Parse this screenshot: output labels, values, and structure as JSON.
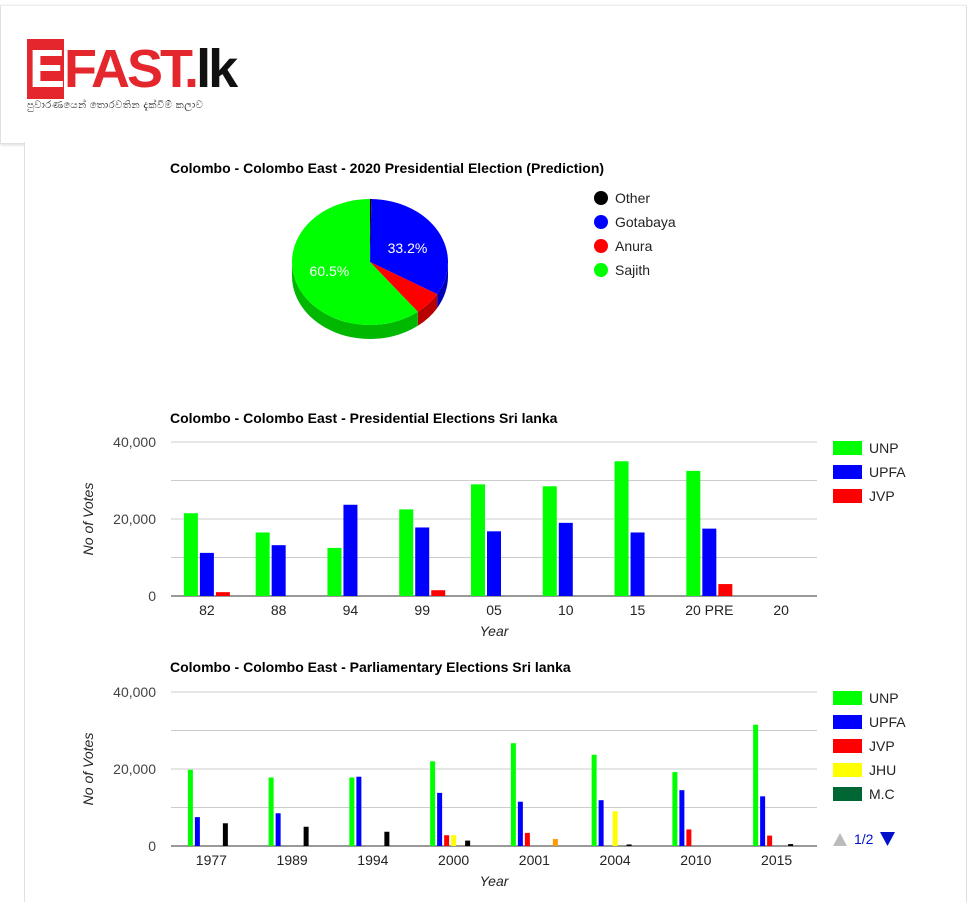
{
  "header": {
    "logo_e": "E",
    "logo_fast": "FAST.",
    "logo_lk": "lk",
    "tagline": "පුවාරණයෙන් තොරවතින දැක්වීම් කලාව"
  },
  "charts": {
    "pie": {
      "title": "Colombo - Colombo East - 2020 Presidential Election (Prediction)"
    },
    "pres": {
      "title": "Colombo - Colombo East - Presidential Elections Sri lanka",
      "xlabel": "Year",
      "ylabel": "No of Votes"
    },
    "parl": {
      "title": "Colombo - Colombo East - Parliamentary Elections Sri lanka",
      "xlabel": "Year",
      "ylabel": "No of Votes",
      "pager": "1/2"
    }
  },
  "chart_data": [
    {
      "type": "pie",
      "title": "Colombo - Colombo East - 2020 Presidential Election (Prediction)",
      "slices": [
        {
          "label": "Other",
          "value": 0.3,
          "color": "#000000"
        },
        {
          "label": "Gotabaya",
          "value": 33.2,
          "color": "#0000ff",
          "text": "33.2%"
        },
        {
          "label": "Anura",
          "value": 6.0,
          "color": "#ff0000"
        },
        {
          "label": "Sajith",
          "value": 60.5,
          "color": "#00ff00",
          "text": "60.5%"
        }
      ],
      "legend": [
        "Other",
        "Gotabaya",
        "Anura",
        "Sajith"
      ],
      "legend_position": "right"
    },
    {
      "type": "bar",
      "title": "Colombo - Colombo East - Presidential Elections Sri lanka",
      "xlabel": "Year",
      "ylabel": "No of Votes",
      "ylim": [
        0,
        40000
      ],
      "yticks": [
        "0",
        "20,000",
        "40,000"
      ],
      "ytick_values": [
        0,
        20000,
        40000
      ],
      "categories": [
        "82",
        "88",
        "94",
        "99",
        "05",
        "10",
        "15",
        "20 PRE",
        "20"
      ],
      "series": [
        {
          "name": "UNP",
          "color": "#00ff00",
          "values": [
            21500,
            16500,
            12500,
            22500,
            29000,
            28500,
            35000,
            32500,
            0
          ]
        },
        {
          "name": "UPFA",
          "color": "#0000ff",
          "values": [
            11200,
            13200,
            23700,
            17800,
            16800,
            19000,
            16500,
            17500,
            0
          ]
        },
        {
          "name": "JVP",
          "color": "#ff0000",
          "values": [
            1000,
            0,
            0,
            1500,
            0,
            0,
            0,
            3100,
            0
          ]
        }
      ],
      "grid": true,
      "legend_position": "right"
    },
    {
      "type": "bar",
      "title": "Colombo - Colombo East - Parliamentary Elections Sri lanka",
      "xlabel": "Year",
      "ylabel": "No of Votes",
      "ylim": [
        0,
        40000
      ],
      "yticks": [
        "0",
        "20,000",
        "40,000"
      ],
      "ytick_values": [
        0,
        20000,
        40000
      ],
      "categories": [
        "1977",
        "1989",
        "1994",
        "2000",
        "2001",
        "2004",
        "2010",
        "2015"
      ],
      "series": [
        {
          "name": "UNP",
          "color": "#00ff00",
          "values": [
            19800,
            17800,
            17800,
            22000,
            26700,
            23700,
            19200,
            31500
          ]
        },
        {
          "name": "UPFA",
          "color": "#0000ff",
          "values": [
            7500,
            8500,
            18000,
            13800,
            11500,
            11900,
            14500,
            12900
          ]
        },
        {
          "name": "JVP",
          "color": "#ff0000",
          "values": [
            0,
            0,
            0,
            2800,
            3400,
            0,
            4300,
            2700
          ]
        },
        {
          "name": "JHU",
          "color": "#ffff00",
          "values": [
            0,
            0,
            0,
            2800,
            0,
            9000,
            0,
            0
          ]
        },
        {
          "name": "M.C",
          "color": "#006633",
          "values": [
            0,
            0,
            0,
            0,
            0,
            0,
            0,
            0
          ]
        },
        {
          "name": "",
          "color": "#000000",
          "values": [
            5900,
            5000,
            3700,
            1400,
            0,
            400,
            0,
            500
          ]
        },
        {
          "name": "",
          "color": "#ff9900",
          "values": [
            0,
            0,
            0,
            0,
            1800,
            0,
            0,
            0
          ]
        }
      ],
      "legend_visible": [
        "UNP",
        "UPFA",
        "JVP",
        "JHU",
        "M.C"
      ],
      "grid": true,
      "legend_position": "right"
    }
  ]
}
